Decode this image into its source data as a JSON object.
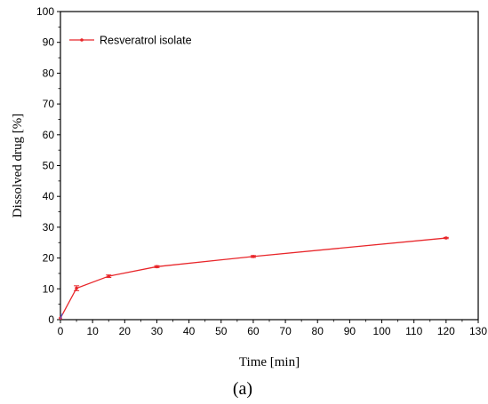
{
  "chart_data": {
    "type": "line",
    "xlabel": "Time [min]",
    "ylabel": "Dissolved drug [%]",
    "xlim": [
      0,
      130
    ],
    "ylim": [
      0,
      100
    ],
    "xticks": [
      "0",
      "10",
      "20",
      "30",
      "40",
      "50",
      "60",
      "70",
      "80",
      "90",
      "100",
      "110",
      "120",
      "130"
    ],
    "yticks": [
      "0",
      "10",
      "20",
      "30",
      "40",
      "50",
      "60",
      "70",
      "80",
      "90",
      "100"
    ],
    "grid": false,
    "legend_position": "top-left",
    "series": [
      {
        "name": "Resveratrol isolate",
        "color": "#e8262a",
        "x": [
          0,
          5,
          15,
          30,
          60,
          120
        ],
        "y": [
          0.5,
          10.2,
          14.1,
          17.2,
          20.5,
          26.5
        ],
        "error": [
          0,
          0.8,
          0.4,
          0.3,
          0.3,
          0.2
        ]
      }
    ],
    "caption": "(a)"
  }
}
